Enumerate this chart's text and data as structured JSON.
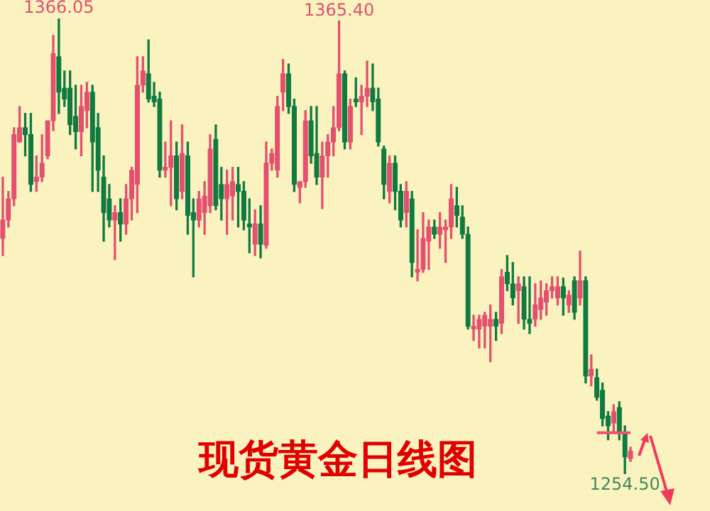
{
  "chart_data": {
    "type": "candlestick",
    "title": "现货黄金日线图",
    "tick_labels": false,
    "categories": [
      null,
      null,
      null,
      null,
      null,
      null,
      null,
      null,
      null,
      null,
      null,
      null,
      null,
      null,
      null,
      null,
      null,
      null,
      null,
      null,
      null,
      null,
      null,
      null,
      null,
      null,
      null,
      null,
      null,
      null,
      null,
      null,
      null,
      null,
      null,
      null,
      null,
      null,
      null,
      null,
      null,
      null,
      null,
      null,
      null,
      null,
      null,
      null,
      null,
      null,
      null,
      null,
      null,
      null,
      null,
      null,
      null,
      null,
      null,
      null,
      null,
      null,
      null,
      null,
      null,
      null,
      null,
      null,
      null,
      null,
      null,
      null,
      null,
      null,
      null,
      null,
      null,
      null,
      null,
      null,
      null,
      null,
      null,
      null,
      null,
      null,
      null,
      null,
      null,
      null,
      null,
      null,
      null,
      null,
      null,
      null,
      null,
      null,
      null,
      null,
      null,
      null,
      null,
      null,
      null,
      null,
      null,
      null,
      null,
      null,
      null,
      null,
      null
    ],
    "ohlc": [
      [
        1312.2,
        1327.2,
        1308.0,
        1316.7
      ],
      [
        1316.7,
        1323.7,
        1315.0,
        1321.9
      ],
      [
        1321.9,
        1339.3,
        1320.2,
        1337.6
      ],
      [
        1335.8,
        1344.5,
        1335.8,
        1339.3
      ],
      [
        1339.3,
        1342.8,
        1332.4,
        1337.6
      ],
      [
        1337.6,
        1342.8,
        1323.7,
        1325.4
      ],
      [
        1326.1,
        1332.4,
        1323.7,
        1327.2
      ],
      [
        1327.2,
        1337.6,
        1326.1,
        1330.6
      ],
      [
        1332.4,
        1341.0,
        1331.7,
        1341.0
      ],
      [
        1341.0,
        1361.9,
        1338.6,
        1357.4
      ],
      [
        1356.7,
        1366.05,
        1342.8,
        1348.0
      ],
      [
        1349.0,
        1353.2,
        1344.5,
        1346.3
      ],
      [
        1349.0,
        1353.2,
        1337.6,
        1340.0
      ],
      [
        1342.1,
        1349.7,
        1334.1,
        1338.3
      ],
      [
        1338.3,
        1349.7,
        1332.4,
        1344.5
      ],
      [
        1343.5,
        1350.4,
        1339.3,
        1348.0
      ],
      [
        1348.0,
        1349.7,
        1323.7,
        1335.8
      ],
      [
        1339.3,
        1342.8,
        1323.7,
        1328.9
      ],
      [
        1327.2,
        1332.4,
        1311.5,
        1318.5
      ],
      [
        1321.9,
        1325.4,
        1315.0,
        1316.7
      ],
      [
        1316.7,
        1320.2,
        1307.0,
        1318.5
      ],
      [
        1318.5,
        1321.9,
        1311.5,
        1315.7
      ],
      [
        1315.7,
        1325.4,
        1313.2,
        1321.9
      ],
      [
        1321.9,
        1329.6,
        1316.7,
        1328.9
      ],
      [
        1325.4,
        1356.7,
        1318.5,
        1349.7
      ],
      [
        1349.7,
        1356.7,
        1348.0,
        1353.2
      ],
      [
        1352.5,
        1360.8,
        1345.6,
        1346.3
      ],
      [
        1347.0,
        1350.4,
        1344.5,
        1345.6
      ],
      [
        1346.3,
        1348.0,
        1327.2,
        1328.9
      ],
      [
        1328.9,
        1335.8,
        1327.2,
        1329.6
      ],
      [
        1329.6,
        1341.0,
        1320.2,
        1332.4
      ],
      [
        1332.4,
        1335.8,
        1319.2,
        1321.9
      ],
      [
        1323.7,
        1340.0,
        1321.9,
        1333.0
      ],
      [
        1332.4,
        1335.8,
        1313.2,
        1317.8
      ],
      [
        1318.5,
        1321.9,
        1302.8,
        1316.7
      ],
      [
        1316.7,
        1323.7,
        1315.0,
        1321.9
      ],
      [
        1318.5,
        1326.1,
        1313.2,
        1322.6
      ],
      [
        1320.2,
        1337.6,
        1318.5,
        1334.1
      ],
      [
        1336.5,
        1340.0,
        1319.2,
        1320.2
      ],
      [
        1325.4,
        1329.6,
        1316.7,
        1321.9
      ],
      [
        1321.9,
        1328.9,
        1313.2,
        1325.4
      ],
      [
        1322.6,
        1329.6,
        1316.7,
        1326.1
      ],
      [
        1325.4,
        1329.6,
        1315.0,
        1323.7
      ],
      [
        1323.7,
        1326.1,
        1314.3,
        1316.7
      ],
      [
        1315.7,
        1321.9,
        1308.7,
        1315.0
      ],
      [
        1310.8,
        1319.2,
        1308.0,
        1315.7
      ],
      [
        1315.7,
        1320.2,
        1307.4,
        1310.8
      ],
      [
        1310.5,
        1335.8,
        1309.8,
        1330.6
      ],
      [
        1330.6,
        1334.1,
        1328.9,
        1333.0
      ],
      [
        1328.9,
        1347.0,
        1327.2,
        1344.5
      ],
      [
        1348.0,
        1356.0,
        1343.5,
        1352.5
      ],
      [
        1352.5,
        1354.9,
        1342.8,
        1344.5
      ],
      [
        1344.5,
        1346.3,
        1323.7,
        1325.4
      ],
      [
        1324.7,
        1326.1,
        1320.9,
        1326.1
      ],
      [
        1326.1,
        1343.5,
        1324.7,
        1341.0
      ],
      [
        1341.0,
        1344.5,
        1330.6,
        1332.4
      ],
      [
        1333.0,
        1344.5,
        1325.4,
        1327.2
      ],
      [
        1327.2,
        1335.8,
        1319.5,
        1332.4
      ],
      [
        1332.4,
        1337.6,
        1327.2,
        1335.8
      ],
      [
        1335.8,
        1344.5,
        1332.4,
        1339.3
      ],
      [
        1339.3,
        1365.4,
        1338.6,
        1352.5
      ],
      [
        1352.5,
        1353.2,
        1334.1,
        1335.8
      ],
      [
        1335.8,
        1346.3,
        1334.1,
        1344.5
      ],
      [
        1346.3,
        1351.5,
        1344.5,
        1345.6
      ],
      [
        1345.6,
        1349.7,
        1337.6,
        1347.0
      ],
      [
        1347.0,
        1355.6,
        1344.5,
        1349.0
      ],
      [
        1349.0,
        1354.9,
        1343.5,
        1345.6
      ],
      [
        1346.3,
        1349.0,
        1334.8,
        1335.8
      ],
      [
        1334.1,
        1334.8,
        1321.9,
        1325.4
      ],
      [
        1323.7,
        1332.4,
        1320.9,
        1330.6
      ],
      [
        1330.6,
        1332.4,
        1319.2,
        1323.7
      ],
      [
        1323.7,
        1325.4,
        1315.0,
        1316.7
      ],
      [
        1318.5,
        1326.1,
        1315.0,
        1323.7
      ],
      [
        1321.9,
        1323.7,
        1302.8,
        1306.3
      ],
      [
        1303.9,
        1314.3,
        1301.8,
        1304.6
      ],
      [
        1304.6,
        1318.5,
        1303.9,
        1312.2
      ],
      [
        1311.5,
        1316.7,
        1304.6,
        1315.0
      ],
      [
        1315.0,
        1316.7,
        1312.2,
        1313.2
      ],
      [
        1313.2,
        1318.5,
        1309.8,
        1315.0
      ],
      [
        1314.3,
        1316.7,
        1306.3,
        1315.0
      ],
      [
        1315.0,
        1325.4,
        1312.2,
        1321.9
      ],
      [
        1320.2,
        1324.7,
        1315.0,
        1317.8
      ],
      [
        1317.4,
        1320.2,
        1312.2,
        1313.2
      ],
      [
        1313.2,
        1315.0,
        1290.0,
        1290.7
      ],
      [
        1290.0,
        1293.4,
        1287.2,
        1290.7
      ],
      [
        1290.0,
        1293.4,
        1285.4,
        1292.4
      ],
      [
        1290.7,
        1294.1,
        1285.4,
        1293.4
      ],
      [
        1290.7,
        1295.9,
        1282.0,
        1292.4
      ],
      [
        1292.4,
        1294.1,
        1287.2,
        1290.7
      ],
      [
        1291.4,
        1304.6,
        1288.9,
        1302.8
      ],
      [
        1303.9,
        1308.0,
        1299.4,
        1301.1
      ],
      [
        1301.1,
        1306.3,
        1295.9,
        1297.6
      ],
      [
        1299.4,
        1302.8,
        1291.4,
        1301.1
      ],
      [
        1300.4,
        1302.8,
        1290.0,
        1292.4
      ],
      [
        1292.4,
        1302.8,
        1288.9,
        1291.4
      ],
      [
        1292.4,
        1301.1,
        1290.7,
        1295.9
      ],
      [
        1294.8,
        1301.8,
        1292.4,
        1297.6
      ],
      [
        1296.6,
        1301.1,
        1293.4,
        1299.4
      ],
      [
        1299.4,
        1302.8,
        1297.6,
        1300.4
      ],
      [
        1297.6,
        1302.8,
        1295.9,
        1300.4
      ],
      [
        1300.4,
        1302.5,
        1293.4,
        1297.6
      ],
      [
        1295.9,
        1299.4,
        1294.1,
        1298.3
      ],
      [
        1301.8,
        1302.8,
        1292.4,
        1294.1
      ],
      [
        1297.6,
        1309.1,
        1295.9,
        1301.8
      ],
      [
        1301.8,
        1302.8,
        1276.8,
        1278.5
      ],
      [
        1278.5,
        1283.7,
        1276.1,
        1280.2
      ],
      [
        1278.1,
        1280.2,
        1272.6,
        1273.3
      ],
      [
        1275.0,
        1276.8,
        1266.3,
        1268.1
      ],
      [
        1268.7,
        1269.8,
        1262.9,
        1266.3
      ],
      [
        1267.0,
        1271.5,
        1264.6,
        1269.8
      ],
      [
        1270.8,
        1272.2,
        1262.9,
        1264.6
      ],
      [
        1264.6,
        1266.3,
        1254.5,
        1258.7
      ],
      [
        1258.3,
        1261.1,
        1257.6,
        1260.1
      ]
    ],
    "colors": [
      "#e4506e",
      "#e4506e",
      "#e4506e",
      "#e4506e",
      "#127a40",
      "#127a40",
      "#e4506e",
      "#e4506e",
      "#e4506e",
      "#e4506e",
      "#127a40",
      "#127a40",
      "#127a40",
      "#127a40",
      "#e4506e",
      "#e4506e",
      "#127a40",
      "#127a40",
      "#127a40",
      "#127a40",
      "#e4506e",
      "#127a40",
      "#e4506e",
      "#e4506e",
      "#e4506e",
      "#e4506e",
      "#127a40",
      "#127a40",
      "#127a40",
      "#e4506e",
      "#e4506e",
      "#127a40",
      "#e4506e",
      "#127a40",
      "#127a40",
      "#e4506e",
      "#e4506e",
      "#e4506e",
      "#127a40",
      "#127a40",
      "#e4506e",
      "#e4506e",
      "#127a40",
      "#127a40",
      "#127a40",
      "#e4506e",
      "#127a40",
      "#e4506e",
      "#e4506e",
      "#e4506e",
      "#e4506e",
      "#127a40",
      "#127a40",
      "#e4506e",
      "#e4506e",
      "#127a40",
      "#127a40",
      "#e4506e",
      "#e4506e",
      "#e4506e",
      "#e4506e",
      "#127a40",
      "#e4506e",
      "#127a40",
      "#e4506e",
      "#e4506e",
      "#127a40",
      "#127a40",
      "#127a40",
      "#e4506e",
      "#127a40",
      "#127a40",
      "#e4506e",
      "#127a40",
      "#e4506e",
      "#e4506e",
      "#e4506e",
      "#127a40",
      "#e4506e",
      "#e4506e",
      "#e4506e",
      "#127a40",
      "#127a40",
      "#127a40",
      "#e4506e",
      "#e4506e",
      "#e4506e",
      "#e4506e",
      "#127a40",
      "#e4506e",
      "#127a40",
      "#127a40",
      "#e4506e",
      "#127a40",
      "#127a40",
      "#e4506e",
      "#e4506e",
      "#e4506e",
      "#e4506e",
      "#e4506e",
      "#127a40",
      "#e4506e",
      "#127a40",
      "#e4506e",
      "#127a40",
      "#e4506e",
      "#127a40",
      "#127a40",
      "#127a40",
      "#e4506e",
      "#127a40",
      "#127a40",
      "#e4506e"
    ],
    "series": [
      {
        "type": "line",
        "color": "#f0506e",
        "values": [
          null,
          null,
          null,
          null,
          null,
          null,
          null,
          null,
          null,
          null,
          null,
          null,
          null,
          null,
          null,
          null,
          null,
          null,
          null,
          null,
          null,
          null,
          null,
          null,
          null,
          null,
          null,
          null,
          null,
          null,
          null,
          null,
          null,
          null,
          null,
          null,
          null,
          null,
          null,
          null,
          null,
          null,
          null,
          null,
          null,
          null,
          null,
          null,
          null,
          null,
          null,
          null,
          null,
          null,
          null,
          null,
          null,
          null,
          null,
          null,
          null,
          null,
          null,
          null,
          null,
          null,
          null,
          null,
          null,
          null,
          null,
          null,
          null,
          null,
          null,
          null,
          null,
          null,
          null,
          null,
          null,
          null,
          null,
          null,
          null,
          null,
          null,
          null,
          null,
          null,
          null,
          null,
          null,
          null,
          null,
          null,
          null,
          null,
          null,
          null,
          null,
          null,
          null,
          null,
          null,
          null,
          1264.6,
          1264.6,
          1264.6,
          1264.6,
          1264.6,
          1264.6,
          1264.6
        ]
      }
    ],
    "annotations": [
      {
        "text": "1366.05",
        "y": 1366.05
      },
      {
        "text": "1365.40",
        "y": 1365.4
      },
      {
        "text": "1254.50",
        "y": 1254.5
      }
    ]
  }
}
